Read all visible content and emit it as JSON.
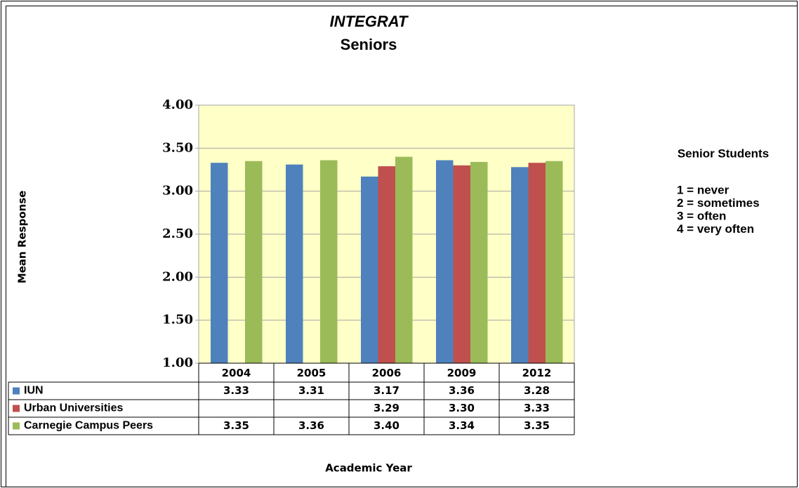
{
  "chart_data": {
    "type": "bar",
    "title": "INTEGRAT",
    "subtitle": "Seniors",
    "y_label": "Mean Response",
    "x_label": "Academic Year",
    "categories": [
      "2004",
      "2005",
      "2006",
      "2009",
      "2012"
    ],
    "series": [
      {
        "name": "IUN",
        "color": "#4f81bd",
        "values": [
          3.33,
          3.31,
          3.17,
          3.36,
          3.28
        ],
        "value_labels": [
          "3.33",
          "3.31",
          "3.17",
          "3.36",
          "3.28"
        ]
      },
      {
        "name": "Urban Universities",
        "color": "#c0504d",
        "values": [
          null,
          null,
          3.29,
          3.3,
          3.33
        ],
        "value_labels": [
          null,
          null,
          "3.29",
          "3.30",
          "3.33"
        ]
      },
      {
        "name": "Carnegie Campus Peers",
        "color": "#9bbb59",
        "values": [
          3.35,
          3.36,
          3.4,
          3.34,
          3.35
        ],
        "value_labels": [
          "3.35",
          "3.36",
          "3.40",
          "3.34",
          "3.35"
        ]
      }
    ],
    "ylim": [
      1,
      4
    ],
    "yticks": [
      {
        "value": 1,
        "label": "1.00"
      },
      {
        "value": 1.5,
        "label": "1.50"
      },
      {
        "value": 2,
        "label": "2.00"
      },
      {
        "value": 2.5,
        "label": "2.50"
      },
      {
        "value": 3,
        "label": "3.00"
      },
      {
        "value": 3.5,
        "label": "3.50"
      },
      {
        "value": 4,
        "label": "4.00"
      }
    ],
    "grid": true,
    "annotations": [
      "Senior Students",
      "1 = never",
      "2 = sometimes",
      "3 = often",
      "4 = very often"
    ]
  }
}
